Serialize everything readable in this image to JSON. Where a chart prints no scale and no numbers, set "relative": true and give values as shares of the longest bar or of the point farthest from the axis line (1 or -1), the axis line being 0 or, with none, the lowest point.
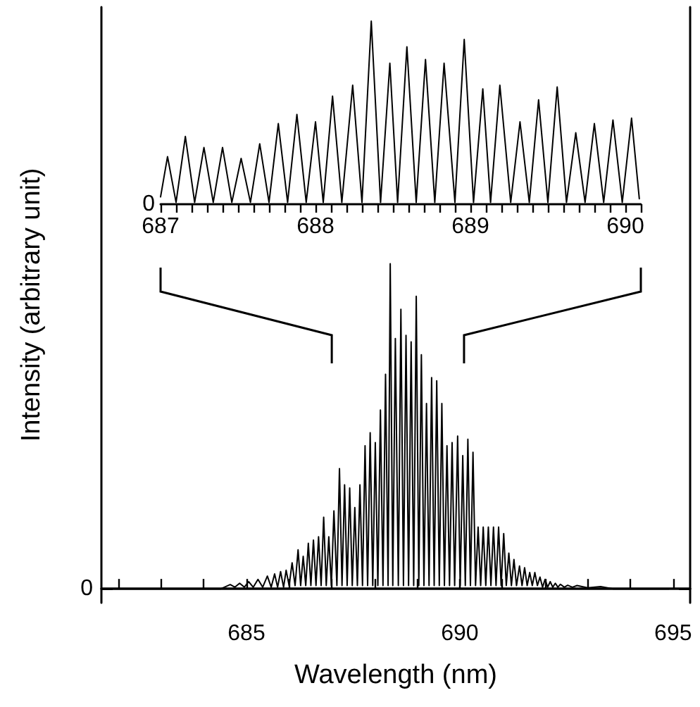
{
  "chart_data": [
    {
      "type": "line",
      "xlabel": "Wavelength (nm)",
      "ylabel": "Intensity (arbitrary unit)",
      "relative": true,
      "color": "#000000",
      "marker": "none",
      "line_style": "solid",
      "xlim": [
        681.6,
        695.4
      ],
      "xticks": [
        {
          "value": 682,
          "label": null
        },
        {
          "value": 683,
          "label": null
        },
        {
          "value": 684,
          "label": null
        },
        685,
        {
          "value": 686,
          "label": null
        },
        {
          "value": 687,
          "label": null
        },
        {
          "value": 688,
          "label": null
        },
        {
          "value": 689,
          "label": null
        },
        690,
        {
          "value": 691,
          "label": null
        },
        {
          "value": 692,
          "label": null
        },
        {
          "value": 693,
          "label": null
        },
        {
          "value": 694,
          "label": null
        },
        695
      ],
      "annotations": [
        "0"
      ],
      "x": [
        681.65,
        684.4,
        684.62,
        684.73,
        684.84,
        684.95,
        685.05,
        685.16,
        685.27,
        685.38,
        685.49,
        685.58,
        685.66,
        685.73,
        685.8,
        685.87,
        685.93,
        686.0,
        686.07,
        686.14,
        686.21,
        686.27,
        686.33,
        686.39,
        686.45,
        686.51,
        686.57,
        686.63,
        686.69,
        686.75,
        686.81,
        686.87,
        686.93,
        686.99,
        687.05,
        687.12,
        687.18,
        687.24,
        687.3,
        687.36,
        687.42,
        687.48,
        687.54,
        687.6,
        687.66,
        687.72,
        687.78,
        687.84,
        687.9,
        687.96,
        688.02,
        688.08,
        688.14,
        688.2,
        688.26,
        688.32,
        688.37,
        688.43,
        688.49,
        688.56,
        688.62,
        688.68,
        688.74,
        688.8,
        688.86,
        688.92,
        688.98,
        689.04,
        689.1,
        689.16,
        689.22,
        689.28,
        689.34,
        689.4,
        689.46,
        689.52,
        689.58,
        689.64,
        689.7,
        689.76,
        689.82,
        689.88,
        689.95,
        690.01,
        690.07,
        690.13,
        690.19,
        690.25,
        690.31,
        690.37,
        690.43,
        690.49,
        690.55,
        690.61,
        690.67,
        690.73,
        690.79,
        690.85,
        690.91,
        690.97,
        691.03,
        691.09,
        691.15,
        691.21,
        691.27,
        691.33,
        691.4,
        691.46,
        691.52,
        691.58,
        691.64,
        691.7,
        691.76,
        691.82,
        691.88,
        691.94,
        692.0,
        692.06,
        692.12,
        692.18,
        692.24,
        692.3,
        692.36,
        692.45,
        692.53,
        692.64,
        692.75,
        693.0,
        693.3,
        693.6,
        694.9
      ],
      "values": [
        0,
        0,
        0.013,
        0.005,
        0.017,
        0.005,
        0.022,
        0.005,
        0.029,
        0.005,
        0.039,
        0.005,
        0.046,
        0.005,
        0.053,
        0.005,
        0.057,
        0.01,
        0.08,
        0.01,
        0.12,
        0.01,
        0.1,
        0.01,
        0.14,
        0.01,
        0.15,
        0.01,
        0.16,
        0.01,
        0.22,
        0.01,
        0.16,
        0.01,
        0.24,
        0.01,
        0.37,
        0.01,
        0.32,
        0.01,
        0.31,
        0.01,
        0.25,
        0.01,
        0.32,
        0.01,
        0.44,
        0.01,
        0.48,
        0.01,
        0.45,
        0.01,
        0.55,
        0.01,
        0.66,
        0.01,
        1,
        0.01,
        0.77,
        0.01,
        0.86,
        0.01,
        0.78,
        0.01,
        0.76,
        0.01,
        0.9,
        0.01,
        0.72,
        0.01,
        0.57,
        0.01,
        0.65,
        0.01,
        0.64,
        0.01,
        0.57,
        0.01,
        0.44,
        0.01,
        0.45,
        0.01,
        0.47,
        0.01,
        0.41,
        0.01,
        0.46,
        0.01,
        0.42,
        0.01,
        0.19,
        0.01,
        0.19,
        0.01,
        0.19,
        0.01,
        0.19,
        0.01,
        0.19,
        0.01,
        0.17,
        0.01,
        0.11,
        0.01,
        0.09,
        0.01,
        0.07,
        0.01,
        0.065,
        0.01,
        0.05,
        0.01,
        0.05,
        0.01,
        0.036,
        0.005,
        0.029,
        0.005,
        0.022,
        0.005,
        0.017,
        0.005,
        0.014,
        0.005,
        0.011,
        0.005,
        0.01,
        0.003,
        0.007,
        0,
        0
      ]
    },
    {
      "type": "line",
      "relative": true,
      "color": "#000000",
      "marker": "none",
      "line_style": "solid",
      "xlim": [
        687,
        690.1
      ],
      "xticks": [
        687,
        {
          "value": 687.1,
          "label": null
        },
        {
          "value": 687.2,
          "label": null
        },
        {
          "value": 687.3,
          "label": null
        },
        {
          "value": 687.4,
          "label": null
        },
        {
          "value": 687.5,
          "label": null
        },
        {
          "value": 687.6,
          "label": null
        },
        {
          "value": 687.7,
          "label": null
        },
        {
          "value": 687.8,
          "label": null
        },
        {
          "value": 687.9,
          "label": null
        },
        688,
        {
          "value": 688.1,
          "label": null
        },
        {
          "value": 688.2,
          "label": null
        },
        {
          "value": 688.3,
          "label": null
        },
        {
          "value": 688.4,
          "label": null
        },
        {
          "value": 688.5,
          "label": null
        },
        {
          "value": 688.6,
          "label": null
        },
        {
          "value": 688.7,
          "label": null
        },
        {
          "value": 688.8,
          "label": null
        },
        {
          "value": 688.9,
          "label": null
        },
        689,
        {
          "value": 689.1,
          "label": null
        },
        {
          "value": 689.2,
          "label": null
        },
        {
          "value": 689.3,
          "label": null
        },
        {
          "value": 689.4,
          "label": null
        },
        {
          "value": 689.5,
          "label": null
        },
        {
          "value": 689.6,
          "label": null
        },
        {
          "value": 689.7,
          "label": null
        },
        {
          "value": 689.8,
          "label": null
        },
        {
          "value": 689.9,
          "label": null
        },
        690,
        {
          "value": 690.1,
          "label": null
        }
      ],
      "annotations": [
        "0"
      ],
      "x": [
        687.0,
        687.045,
        687.1,
        687.16,
        687.22,
        687.28,
        687.34,
        687.4,
        687.46,
        687.52,
        687.58,
        687.64,
        687.7,
        687.76,
        687.82,
        687.88,
        687.94,
        688.0,
        688.05,
        688.11,
        688.17,
        688.24,
        688.3,
        688.36,
        688.42,
        688.48,
        688.53,
        688.59,
        688.65,
        688.71,
        688.77,
        688.83,
        688.9,
        688.96,
        689.02,
        689.08,
        689.13,
        689.19,
        689.26,
        689.32,
        689.38,
        689.44,
        689.5,
        689.56,
        689.62,
        689.68,
        689.74,
        689.8,
        689.86,
        689.92,
        689.98,
        690.04,
        690.09
      ],
      "values": [
        0.04,
        0.26,
        0.01,
        0.37,
        0.01,
        0.31,
        0.01,
        0.31,
        0.01,
        0.25,
        0.01,
        0.33,
        0.01,
        0.44,
        0.01,
        0.49,
        0.01,
        0.45,
        0.01,
        0.59,
        0.01,
        0.65,
        0.01,
        1,
        0.01,
        0.77,
        0.01,
        0.86,
        0.01,
        0.79,
        0.01,
        0.77,
        0.01,
        0.9,
        0.01,
        0.63,
        0.01,
        0.65,
        0.01,
        0.45,
        0.01,
        0.57,
        0.01,
        0.64,
        0.01,
        0.39,
        0.01,
        0.44,
        0.01,
        0.46,
        0.01,
        0.47,
        0.03
      ]
    }
  ]
}
